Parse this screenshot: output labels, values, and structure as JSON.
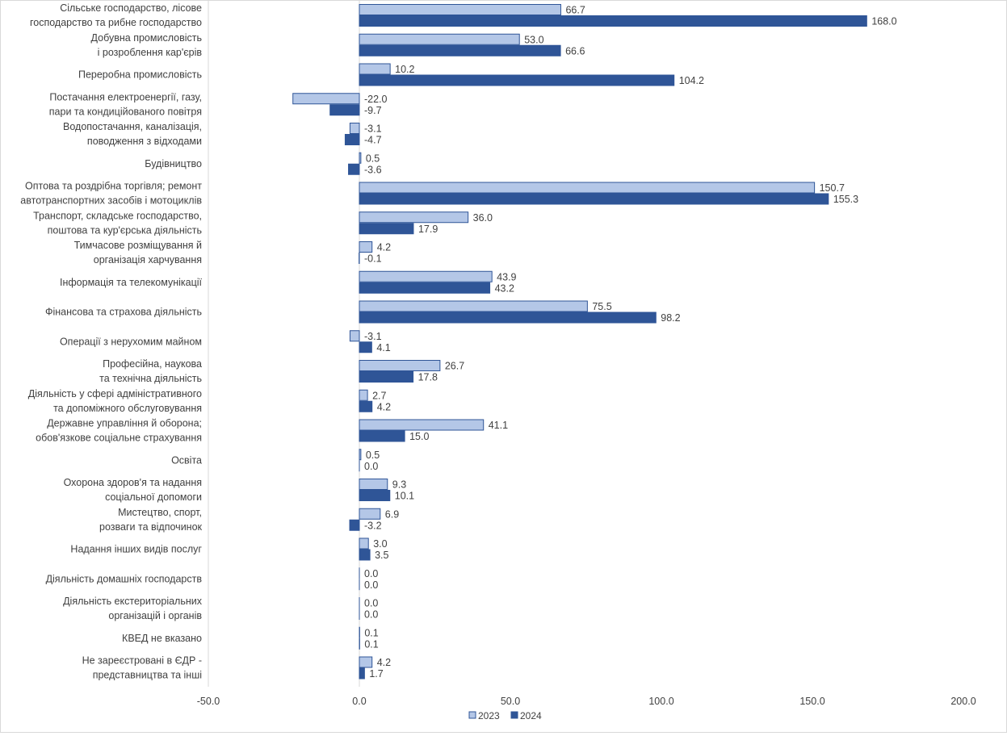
{
  "chart_data": {
    "type": "bar",
    "orientation": "horizontal",
    "categories": [
      [
        "Сільське господарство, лісове",
        "господарство та рибне господарство"
      ],
      [
        "Добувна промисловість",
        "і розроблення кар'єрів"
      ],
      [
        "Переробна промисловість"
      ],
      [
        "Постачання електроенергії, газу,",
        "пари та кондиційованого повітря"
      ],
      [
        "Водопостачання, каналізація,",
        "поводження з відходами"
      ],
      [
        "Будівництво"
      ],
      [
        "Оптова та роздрібна торгівля;  ремонт",
        "автотранспортних засобів і мотоциклів"
      ],
      [
        "Транспорт, складське господарство,",
        "поштова та кур'єрська діяльність"
      ],
      [
        "Тимчасове розміщування й",
        "організація харчування"
      ],
      [
        "Інформація та телекомунікації"
      ],
      [
        "Фінансова та страхова діяльність"
      ],
      [
        "Операції з нерухомим майном"
      ],
      [
        "Професійна, наукова",
        "та технічна діяльність"
      ],
      [
        "Діяльність у сфері адміністративного",
        "та допоміжного обслуговування"
      ],
      [
        "Державне управління й оборона;",
        "обов'язкове соціальне страхування"
      ],
      [
        "Освіта"
      ],
      [
        "Охорона здоров'я та надання",
        "соціальної допомоги"
      ],
      [
        "Мистецтво, спорт,",
        "розваги та відпочинок"
      ],
      [
        "Надання інших видів послуг"
      ],
      [
        "Діяльність домашніх господарств"
      ],
      [
        "Діяльність екстериторіальних",
        "організацій і органів"
      ],
      [
        "КВЕД не вказано"
      ],
      [
        "Не зареєстровані в ЄДР -",
        "представництва та інші"
      ]
    ],
    "series": [
      {
        "name": "2023",
        "color": "#b4c7e7",
        "border": "#2f5597",
        "values": [
          66.7,
          53.0,
          10.2,
          -22.0,
          -3.1,
          0.5,
          150.7,
          36.0,
          4.2,
          43.9,
          75.5,
          -3.1,
          26.7,
          2.7,
          41.1,
          0.5,
          9.3,
          6.9,
          3.0,
          0.0,
          0.0,
          0.1,
          4.2
        ]
      },
      {
        "name": "2024",
        "color": "#2f5597",
        "border": "#2f5597",
        "values": [
          168.0,
          66.6,
          104.2,
          -9.7,
          -4.7,
          -3.6,
          155.3,
          17.9,
          -0.1,
          43.2,
          98.2,
          4.1,
          17.8,
          4.2,
          15.0,
          0.0,
          10.1,
          -3.2,
          3.5,
          0.0,
          0.0,
          0.1,
          1.7
        ]
      }
    ],
    "xlim": [
      -50,
      200
    ],
    "xticks": [
      "-50.0",
      "0.0",
      "50.0",
      "100.0",
      "150.0",
      "200.0"
    ],
    "xtick_values": [
      -50,
      0,
      50,
      100,
      150,
      200
    ],
    "legend": "bottom",
    "grid": false
  }
}
